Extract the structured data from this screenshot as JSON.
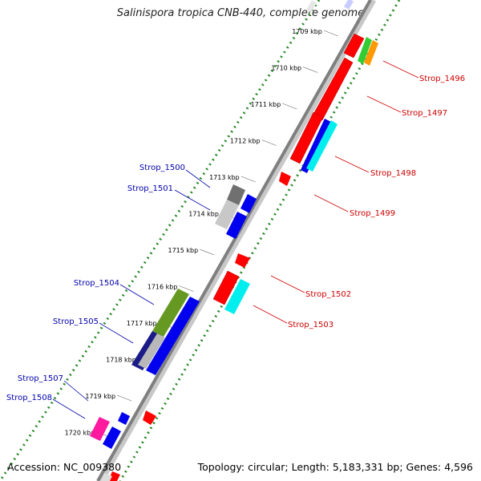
{
  "title": "Salinispora tropica CNB-440, complete genome",
  "accession": "Accession: NC_009380",
  "topology": "Topology: circular; Length: 5,183,331 bp; Genes: 4,596",
  "colors": {
    "backbone": "#8c8c8c",
    "dotted_track": "#2a8a2a",
    "forward_label": "#cc0000",
    "reverse_label": "#0000aa"
  },
  "ticks": [
    "1709 kbp",
    "1710 kbp",
    "1711 kbp",
    "1712 kbp",
    "1713 kbp",
    "1714 kbp",
    "1715 kbp",
    "1716 kbp",
    "1717 kbp",
    "1718 kbp",
    "1719 kbp",
    "1720 kbp"
  ],
  "labels_right": [
    "Strop_1496",
    "Strop_1497",
    "Strop_1498",
    "Strop_1499",
    "Strop_1502",
    "Strop_1503"
  ],
  "labels_left": [
    "Strop_1500",
    "Strop_1501",
    "Strop_1504",
    "Strop_1505",
    "Strop_1507",
    "Strop_1508"
  ]
}
